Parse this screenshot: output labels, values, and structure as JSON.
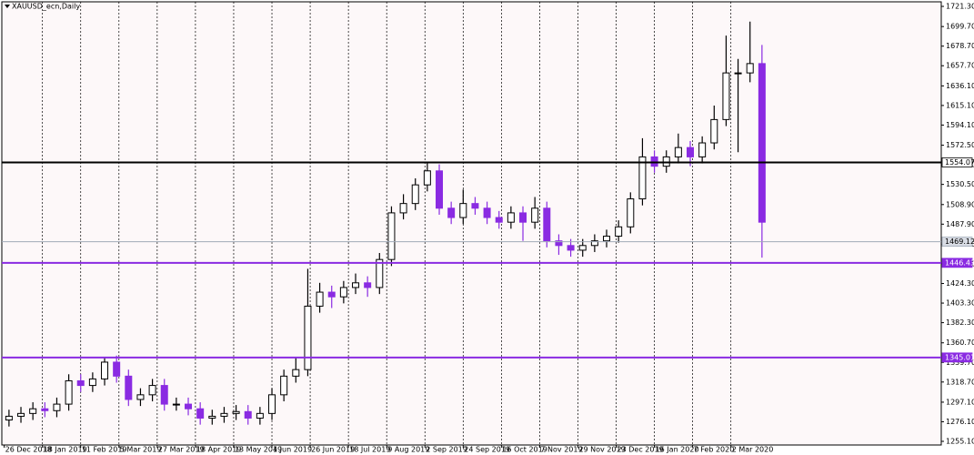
{
  "chart_data": {
    "type": "candlestick",
    "title": "XAUUSD_ecn,Daily",
    "bull_color": "#000000",
    "bear_color": "#8a2be2",
    "grid": true,
    "xlim": [
      -1,
      392
    ],
    "ylim": [
      1251.2,
      1726.2
    ],
    "yticks": [
      {
        "value": 1721.3,
        "label": "1721.30"
      },
      {
        "value": 1699.7,
        "label": "1699.70"
      },
      {
        "value": 1678.7,
        "label": "1678.70"
      },
      {
        "value": 1657.7,
        "label": "1657.70"
      },
      {
        "value": 1636.1,
        "label": "1636.10"
      },
      {
        "value": 1615.1,
        "label": "1615.10"
      },
      {
        "value": 1594.1,
        "label": "1594.10"
      },
      {
        "value": 1572.5,
        "label": "1572.50"
      },
      {
        "value": 1551.5,
        "label": "1551.50"
      },
      {
        "value": 1530.5,
        "label": "1530.50"
      },
      {
        "value": 1508.9,
        "label": "1508.90"
      },
      {
        "value": 1487.9,
        "label": "1487.90"
      },
      {
        "value": 1466.3,
        "label": "1466.30"
      },
      {
        "value": 1445.3,
        "label": "1445.30"
      },
      {
        "value": 1424.3,
        "label": "1424.30"
      },
      {
        "value": 1403.3,
        "label": "1403.30"
      },
      {
        "value": 1382.3,
        "label": "1382.30"
      },
      {
        "value": 1360.7,
        "label": "1360.70"
      },
      {
        "value": 1339.7,
        "label": "1339.70"
      },
      {
        "value": 1318.7,
        "label": "1318.70"
      },
      {
        "value": 1297.1,
        "label": "1297.10"
      },
      {
        "value": 1276.1,
        "label": "1276.10"
      },
      {
        "value": 1255.1,
        "label": "1255.10"
      }
    ],
    "xticks": [
      {
        "value": 0,
        "label": "26 Dec 2018"
      },
      {
        "value": 16,
        "label": "18 Jan 2019"
      },
      {
        "value": 32,
        "label": "11 Feb 2019"
      },
      {
        "value": 48,
        "label": "5 Mar 2019"
      },
      {
        "value": 64,
        "label": "27 Mar 2019"
      },
      {
        "value": 80,
        "label": "18 Apr 2019"
      },
      {
        "value": 96,
        "label": "13 May 2019"
      },
      {
        "value": 112,
        "label": "4 Jun 2019"
      },
      {
        "value": 128,
        "label": "26 Jun 2019"
      },
      {
        "value": 144,
        "label": "18 Jul 2019"
      },
      {
        "value": 160,
        "label": "9 Aug 2019"
      },
      {
        "value": 176,
        "label": "2 Sep 2019"
      },
      {
        "value": 192,
        "label": "24 Sep 2019"
      },
      {
        "value": 208,
        "label": "16 Oct 2019"
      },
      {
        "value": 224,
        "label": "7 Nov 2019"
      },
      {
        "value": 240,
        "label": "29 Nov 2019"
      },
      {
        "value": 256,
        "label": "23 Dec 2019"
      },
      {
        "value": 272,
        "label": "16 Jan 2020"
      },
      {
        "value": 288,
        "label": "7 Feb 2020"
      },
      {
        "value": 304,
        "label": "2 Mar 2020"
      }
    ],
    "x": [
      2,
      7,
      12,
      17,
      22,
      27,
      32,
      37,
      42,
      47,
      52,
      57,
      62,
      67,
      72,
      77,
      82,
      87,
      92,
      97,
      102,
      107,
      112,
      117,
      122,
      127,
      132,
      137,
      142,
      147,
      152,
      157,
      162,
      167,
      172,
      177,
      182,
      187,
      192,
      197,
      202,
      207,
      212,
      217,
      222,
      227,
      232,
      237,
      242,
      247,
      252,
      257,
      262,
      267,
      272,
      277,
      282,
      287,
      292,
      297,
      302,
      307,
      312,
      317
    ],
    "open": [
      1278,
      1282,
      1285,
      1290,
      1288,
      1295,
      1320,
      1315,
      1322,
      1340,
      1325,
      1300,
      1305,
      1315,
      1295,
      1295,
      1290,
      1280,
      1282,
      1285,
      1287,
      1280,
      1285,
      1305,
      1325,
      1332,
      1400,
      1415,
      1410,
      1420,
      1425,
      1420,
      1450,
      1500,
      1510,
      1530,
      1545,
      1505,
      1495,
      1510,
      1505,
      1495,
      1490,
      1500,
      1490,
      1505,
      1470,
      1465,
      1460,
      1465,
      1470,
      1475,
      1485,
      1515,
      1560,
      1550,
      1560,
      1570,
      1560,
      1575,
      1600,
      1650,
      1650,
      1660
    ],
    "high": [
      1289,
      1292,
      1297,
      1297,
      1302,
      1327,
      1327,
      1329,
      1345,
      1347,
      1332,
      1312,
      1322,
      1322,
      1302,
      1302,
      1297,
      1289,
      1292,
      1294,
      1294,
      1292,
      1312,
      1332,
      1345,
      1440,
      1425,
      1422,
      1427,
      1435,
      1432,
      1457,
      1507,
      1520,
      1537,
      1555,
      1552,
      1512,
      1525,
      1517,
      1512,
      1502,
      1507,
      1507,
      1517,
      1512,
      1477,
      1472,
      1472,
      1477,
      1482,
      1492,
      1522,
      1580,
      1567,
      1567,
      1585,
      1577,
      1582,
      1615,
      1690,
      1665,
      1705,
      1680
    ],
    "low": [
      1271,
      1275,
      1278,
      1281,
      1281,
      1288,
      1308,
      1308,
      1315,
      1318,
      1293,
      1293,
      1298,
      1288,
      1288,
      1283,
      1273,
      1273,
      1275,
      1278,
      1273,
      1273,
      1278,
      1298,
      1318,
      1325,
      1393,
      1398,
      1403,
      1413,
      1410,
      1413,
      1443,
      1493,
      1503,
      1523,
      1498,
      1488,
      1488,
      1498,
      1488,
      1483,
      1483,
      1470,
      1483,
      1463,
      1455,
      1453,
      1453,
      1458,
      1463,
      1468,
      1478,
      1508,
      1543,
      1543,
      1553,
      1550,
      1553,
      1568,
      1593,
      1565,
      1640,
      1452
    ],
    "close": [
      1282,
      1285,
      1290,
      1288,
      1295,
      1320,
      1315,
      1322,
      1340,
      1325,
      1300,
      1305,
      1315,
      1295,
      1295,
      1290,
      1280,
      1282,
      1285,
      1287,
      1280,
      1285,
      1305,
      1325,
      1332,
      1400,
      1415,
      1410,
      1420,
      1425,
      1420,
      1450,
      1500,
      1510,
      1530,
      1545,
      1505,
      1495,
      1510,
      1505,
      1495,
      1490,
      1500,
      1490,
      1505,
      1470,
      1465,
      1460,
      1465,
      1470,
      1475,
      1485,
      1515,
      1560,
      1550,
      1560,
      1570,
      1560,
      1575,
      1600,
      1650,
      1650,
      1660,
      1490
    ],
    "hlines": [
      {
        "value": 1554.07,
        "color": "#000000",
        "width": 2,
        "label_bg": "#ffffff",
        "label_fg": "#000000"
      },
      {
        "value": 1469.12,
        "color": "#a0aab8",
        "width": 1,
        "label_bg": "#d8dce4",
        "label_fg": "#000000"
      },
      {
        "value": 1446.43,
        "color": "#8a2be2",
        "width": 2,
        "label_bg": "#8a2be2",
        "label_fg": "#ffffff"
      },
      {
        "value": 1345.01,
        "color": "#8a2be2",
        "width": 2,
        "label_bg": "#8a2be2",
        "label_fg": "#ffffff"
      }
    ]
  }
}
